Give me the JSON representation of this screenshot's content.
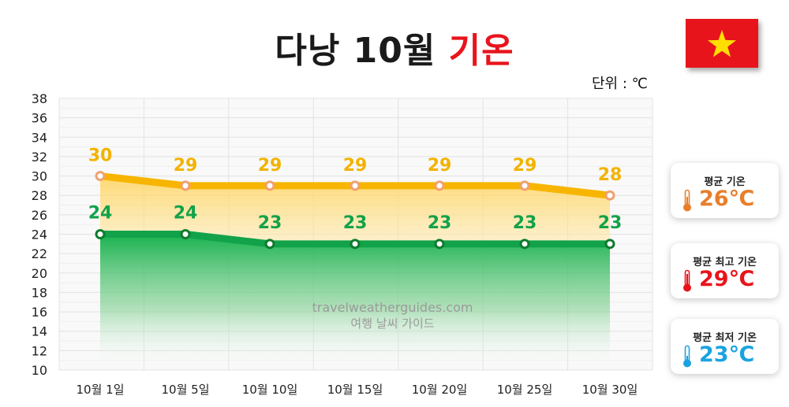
{
  "title": {
    "main": "다낭 10월",
    "highlight": "기온"
  },
  "unit_label": "단위 : ℃",
  "flag": {
    "name": "vietnam-flag",
    "background": "#e8141c",
    "star": "#ffde00"
  },
  "watermark": {
    "line1": "travelweatherguides.com",
    "line2": "여행 날씨 가이드"
  },
  "cards": [
    {
      "label": "평균 기온",
      "value": "26℃",
      "color": "#e87e2a",
      "icon": "thermometer-orange-icon"
    },
    {
      "label": "평균 최고 기온",
      "value": "29℃",
      "color": "#e8141c",
      "icon": "thermometer-red-icon"
    },
    {
      "label": "평균 최저 기온",
      "value": "23℃",
      "color": "#1aa3e0",
      "icon": "thermometer-blue-icon"
    }
  ],
  "chart_data": {
    "type": "line",
    "categories": [
      "10월 1일",
      "10월 5일",
      "10월 10일",
      "10월 15일",
      "10월 20일",
      "10월 25일",
      "10월 30일"
    ],
    "series": [
      {
        "values": [
          30,
          29,
          29,
          29,
          29,
          29,
          28
        ],
        "color": "#f7b500",
        "fill": "area",
        "marker": "#f0a070"
      },
      {
        "values": [
          24,
          24,
          23,
          23,
          23,
          23,
          23
        ],
        "color": "#12a24a",
        "fill": "area",
        "marker": "#0f7a2e"
      }
    ],
    "ylim": [
      10,
      38
    ],
    "yticks": [
      10,
      12,
      14,
      16,
      18,
      20,
      22,
      24,
      26,
      28,
      30,
      32,
      34,
      36,
      38
    ],
    "grid": true,
    "data_labels": true
  }
}
